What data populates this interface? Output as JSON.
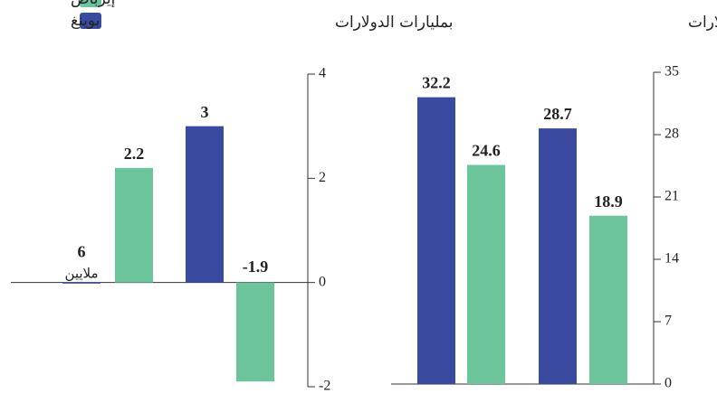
{
  "chart_data": [
    {
      "type": "bar",
      "subtitle": "بمليارات الدولارات",
      "series": [
        {
          "name": "بوينغ",
          "color": "#3a4aa0",
          "values": [
            0.006,
            3
          ],
          "value_labels": [
            "6 ملايين",
            "3"
          ]
        },
        {
          "name": "إيرباص",
          "color": "#6cc49b",
          "values": [
            2.2,
            -1.9
          ]
        }
      ],
      "ylim": [
        -2,
        4
      ],
      "yticks": [
        -2,
        0,
        2,
        4
      ]
    },
    {
      "type": "bar",
      "subtitle": "بمليارات الدولارات",
      "series": [
        {
          "color": "#3a4aa0",
          "values": [
            32.2,
            28.7
          ]
        },
        {
          "color": "#6cc49b",
          "values": [
            24.6,
            18.9
          ]
        }
      ],
      "ylim": [
        0,
        35
      ],
      "yticks": [
        0,
        7,
        14,
        21,
        28,
        35
      ]
    }
  ]
}
